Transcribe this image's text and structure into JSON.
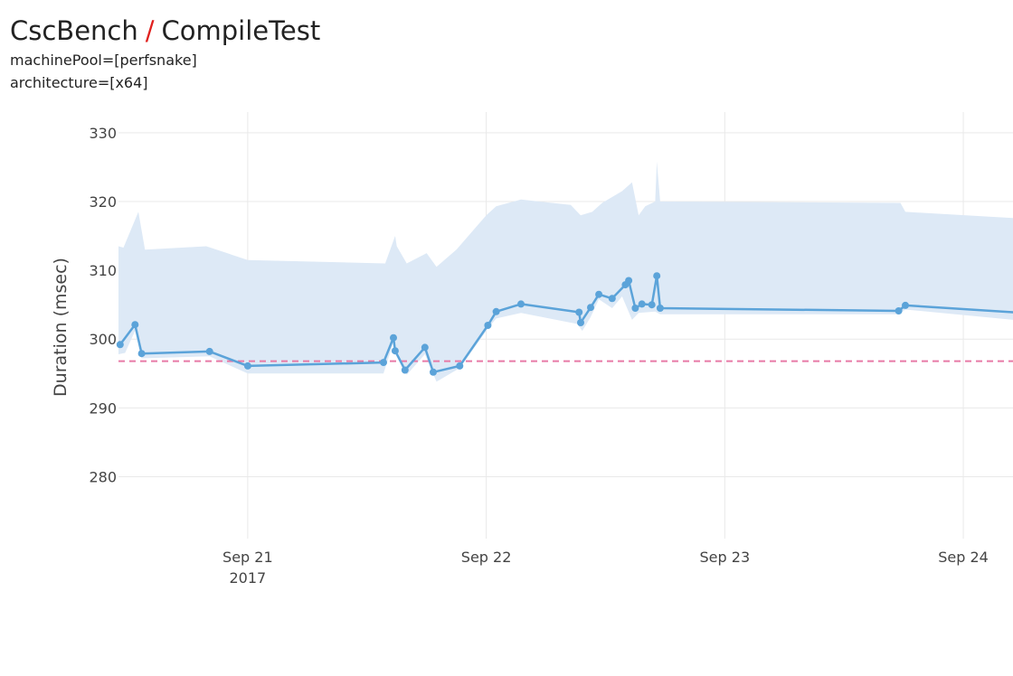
{
  "header": {
    "benchmark": "CscBench",
    "separator": "/",
    "test": "CompileTest",
    "filters": [
      "machinePool=[perfsnake]",
      "architecture=[x64]"
    ]
  },
  "colors": {
    "line": "#5ba3d9",
    "band": "#dde9f6",
    "baseline": "#e87aa6",
    "separator": "#e0201e",
    "grid": "#e9e9e9"
  },
  "chart_data": {
    "type": "line",
    "title": "CscBench / CompileTest",
    "ylabel": "Duration (msec)",
    "xlabel": "",
    "xlim": [
      "2017-09-20 11:00",
      "2017-09-24 05:00"
    ],
    "ylim": [
      271,
      333
    ],
    "yticks": [
      280,
      290,
      300,
      310,
      320,
      330
    ],
    "xticks": [
      {
        "at": "2017-09-21 00:00",
        "label": "Sep 21",
        "sublabel": "2017"
      },
      {
        "at": "2017-09-22 00:00",
        "label": "Sep 22",
        "sublabel": ""
      },
      {
        "at": "2017-09-23 00:00",
        "label": "Sep 23",
        "sublabel": ""
      },
      {
        "at": "2017-09-24 00:00",
        "label": "Sep 24",
        "sublabel": ""
      }
    ],
    "grid": true,
    "baseline": 296.8,
    "series": [
      {
        "x": [
          "2017-09-20 11:10",
          "2017-09-20 12:40",
          "2017-09-20 13:20",
          "2017-09-20 20:10",
          "2017-09-21 00:00",
          "2017-09-21 13:40",
          "2017-09-21 14:40",
          "2017-09-21 14:50",
          "2017-09-21 15:50",
          "2017-09-21 17:50",
          "2017-09-21 18:40",
          "2017-09-21 21:20",
          "2017-09-22 00:10",
          "2017-09-22 01:00",
          "2017-09-22 03:30",
          "2017-09-22 09:20",
          "2017-09-22 09:30",
          "2017-09-22 10:30",
          "2017-09-22 11:20",
          "2017-09-22 12:40",
          "2017-09-22 14:00",
          "2017-09-22 14:20",
          "2017-09-22 15:00",
          "2017-09-22 15:40",
          "2017-09-22 16:40",
          "2017-09-22 17:10",
          "2017-09-22 17:30",
          "2017-09-23 17:30",
          "2017-09-23 18:10",
          "2017-09-24 05:00"
        ],
        "values": [
          299.2,
          302.1,
          297.9,
          298.2,
          296.1,
          296.6,
          300.2,
          298.3,
          295.5,
          298.8,
          295.2,
          296.1,
          302.0,
          304.0,
          305.1,
          303.9,
          302.4,
          304.6,
          306.5,
          305.9,
          307.9,
          308.5,
          304.5,
          305.1,
          305.0,
          309.2,
          304.5,
          304.1,
          304.9,
          303.9
        ],
        "markers": [
          true,
          true,
          true,
          true,
          true,
          true,
          true,
          true,
          true,
          true,
          true,
          true,
          true,
          true,
          true,
          true,
          true,
          true,
          true,
          true,
          true,
          true,
          true,
          true,
          true,
          true,
          true,
          true,
          true,
          false
        ]
      }
    ],
    "band": {
      "upper": [
        {
          "x": "2017-09-20 11:00",
          "y": 313.5
        },
        {
          "x": "2017-09-20 11:30",
          "y": 313.3
        },
        {
          "x": "2017-09-20 13:00",
          "y": 318.5
        },
        {
          "x": "2017-09-20 13:40",
          "y": 313.0
        },
        {
          "x": "2017-09-20 19:50",
          "y": 313.5
        },
        {
          "x": "2017-09-21 00:00",
          "y": 311.5
        },
        {
          "x": "2017-09-21 13:50",
          "y": 311.0
        },
        {
          "x": "2017-09-21 14:50",
          "y": 315.0
        },
        {
          "x": "2017-09-21 15:00",
          "y": 313.5
        },
        {
          "x": "2017-09-21 16:00",
          "y": 311.0
        },
        {
          "x": "2017-09-21 18:00",
          "y": 312.5
        },
        {
          "x": "2017-09-21 19:00",
          "y": 310.5
        },
        {
          "x": "2017-09-21 21:00",
          "y": 313.0
        },
        {
          "x": "2017-09-22 00:00",
          "y": 318.0
        },
        {
          "x": "2017-09-22 01:00",
          "y": 319.3
        },
        {
          "x": "2017-09-22 03:30",
          "y": 320.3
        },
        {
          "x": "2017-09-22 08:30",
          "y": 319.5
        },
        {
          "x": "2017-09-22 09:30",
          "y": 318.0
        },
        {
          "x": "2017-09-22 10:40",
          "y": 318.5
        },
        {
          "x": "2017-09-22 11:40",
          "y": 319.8
        },
        {
          "x": "2017-09-22 13:40",
          "y": 321.5
        },
        {
          "x": "2017-09-22 14:40",
          "y": 322.8
        },
        {
          "x": "2017-09-22 15:20",
          "y": 318.0
        },
        {
          "x": "2017-09-22 16:00",
          "y": 319.3
        },
        {
          "x": "2017-09-22 17:00",
          "y": 320.0
        },
        {
          "x": "2017-09-22 17:10",
          "y": 325.8
        },
        {
          "x": "2017-09-22 17:30",
          "y": 320.0
        },
        {
          "x": "2017-09-23 17:40",
          "y": 319.8
        },
        {
          "x": "2017-09-23 18:10",
          "y": 318.5
        },
        {
          "x": "2017-09-24 05:00",
          "y": 317.6
        }
      ],
      "lower": [
        {
          "x": "2017-09-24 05:00",
          "y": 302.8
        },
        {
          "x": "2017-09-23 18:10",
          "y": 304.3
        },
        {
          "x": "2017-09-23 17:30",
          "y": 303.6
        },
        {
          "x": "2017-09-22 17:30",
          "y": 303.6
        },
        {
          "x": "2017-09-22 17:00",
          "y": 304.0
        },
        {
          "x": "2017-09-22 15:20",
          "y": 303.8
        },
        {
          "x": "2017-09-22 14:40",
          "y": 302.8
        },
        {
          "x": "2017-09-22 13:40",
          "y": 306.2
        },
        {
          "x": "2017-09-22 12:40",
          "y": 304.5
        },
        {
          "x": "2017-09-22 11:20",
          "y": 305.8
        },
        {
          "x": "2017-09-22 10:30",
          "y": 303.2
        },
        {
          "x": "2017-09-22 09:40",
          "y": 301.2
        },
        {
          "x": "2017-09-22 09:10",
          "y": 302.2
        },
        {
          "x": "2017-09-22 03:30",
          "y": 303.8
        },
        {
          "x": "2017-09-22 01:00",
          "y": 303.0
        },
        {
          "x": "2017-09-22 00:10",
          "y": 301.5
        },
        {
          "x": "2017-09-21 21:20",
          "y": 295.8
        },
        {
          "x": "2017-09-21 19:00",
          "y": 293.8
        },
        {
          "x": "2017-09-21 17:50",
          "y": 297.8
        },
        {
          "x": "2017-09-21 16:00",
          "y": 294.8
        },
        {
          "x": "2017-09-21 14:40",
          "y": 299.5
        },
        {
          "x": "2017-09-21 13:40",
          "y": 295.0
        },
        {
          "x": "2017-09-21 00:00",
          "y": 295.0
        },
        {
          "x": "2017-09-20 20:10",
          "y": 297.5
        },
        {
          "x": "2017-09-20 13:20",
          "y": 297.2
        },
        {
          "x": "2017-09-20 12:40",
          "y": 301.2
        },
        {
          "x": "2017-09-20 11:40",
          "y": 298.0
        },
        {
          "x": "2017-09-20 11:00",
          "y": 297.8
        }
      ]
    }
  }
}
